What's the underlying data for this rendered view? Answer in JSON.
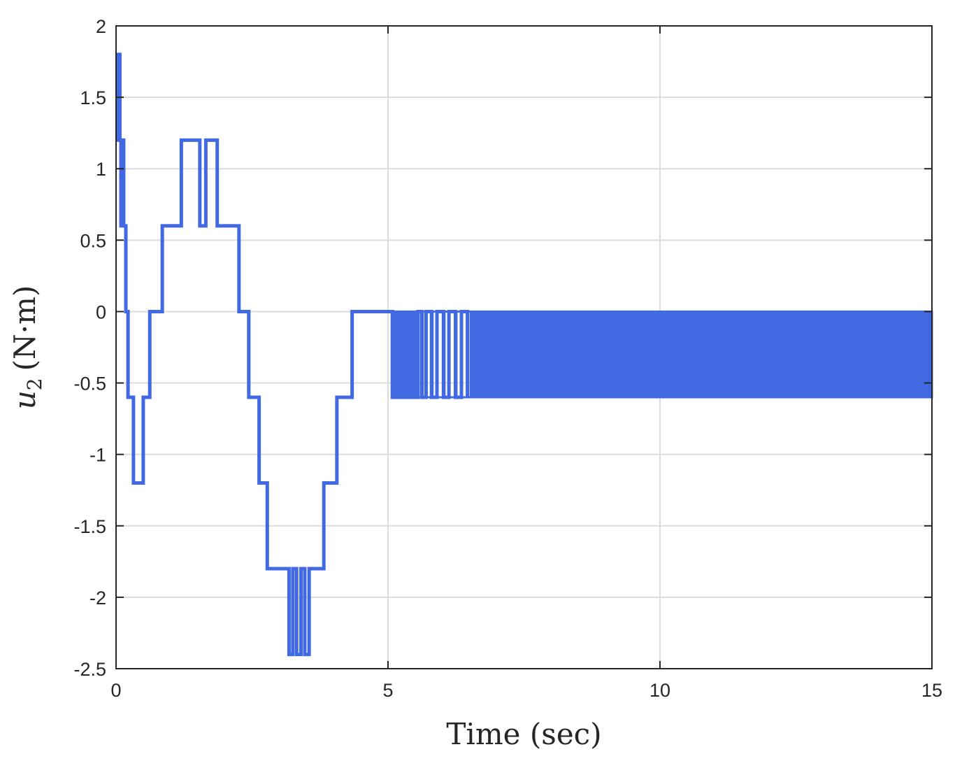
{
  "chart_data": {
    "type": "line",
    "title": "",
    "xlabel": "Time (sec)",
    "ylabel_symbol": "u",
    "ylabel_subscript": "2",
    "ylabel_unit": "(N·m)",
    "xlim": [
      0,
      15
    ],
    "ylim": [
      -2.5,
      2
    ],
    "xticks": [
      0,
      5,
      10,
      15
    ],
    "xtick_labels": [
      "0",
      "5",
      "10",
      "15"
    ],
    "yticks": [
      -2.5,
      -2,
      -1.5,
      -1,
      -0.5,
      0,
      0.5,
      1,
      1.5,
      2
    ],
    "ytick_labels": [
      "-2.5",
      "-2",
      "-1.5",
      "-1",
      "-0.5",
      "0",
      "0.5",
      "1",
      "1.5",
      "2"
    ],
    "grid": true,
    "line_style": "step",
    "color": "#4169e1",
    "series": [
      {
        "steps": [
          [
            0.0,
            1.8
          ],
          [
            0.02,
            1.2
          ],
          [
            0.05,
            1.8
          ],
          [
            0.07,
            1.2
          ],
          [
            0.09,
            0.6
          ],
          [
            0.12,
            1.2
          ],
          [
            0.14,
            0.6
          ],
          [
            0.18,
            0.0
          ],
          [
            0.22,
            -0.6
          ],
          [
            0.32,
            -1.2
          ],
          [
            0.5,
            -0.6
          ],
          [
            0.62,
            0.0
          ],
          [
            0.85,
            0.6
          ],
          [
            1.2,
            1.2
          ],
          [
            1.54,
            0.6
          ],
          [
            1.65,
            1.2
          ],
          [
            1.86,
            0.6
          ],
          [
            2.26,
            0.0
          ],
          [
            2.44,
            -0.6
          ],
          [
            2.63,
            -1.2
          ],
          [
            2.78,
            -1.8
          ],
          [
            3.18,
            -2.4
          ],
          [
            3.25,
            -1.8
          ],
          [
            3.32,
            -2.4
          ],
          [
            3.4,
            -1.8
          ],
          [
            3.47,
            -2.4
          ],
          [
            3.55,
            -1.8
          ],
          [
            3.82,
            -1.2
          ],
          [
            4.06,
            -0.6
          ],
          [
            4.34,
            0.0
          ],
          [
            5.08,
            -0.6
          ]
        ],
        "chatter_band": {
          "x_start": 5.08,
          "x_end": 15.0,
          "high": 0.0,
          "low": -0.6,
          "sparse_switch_times": [
            5.55,
            5.62,
            5.7,
            5.8,
            5.9,
            6.02,
            6.12,
            6.24,
            6.35,
            6.46
          ],
          "dense_after": 6.5
        }
      }
    ]
  }
}
